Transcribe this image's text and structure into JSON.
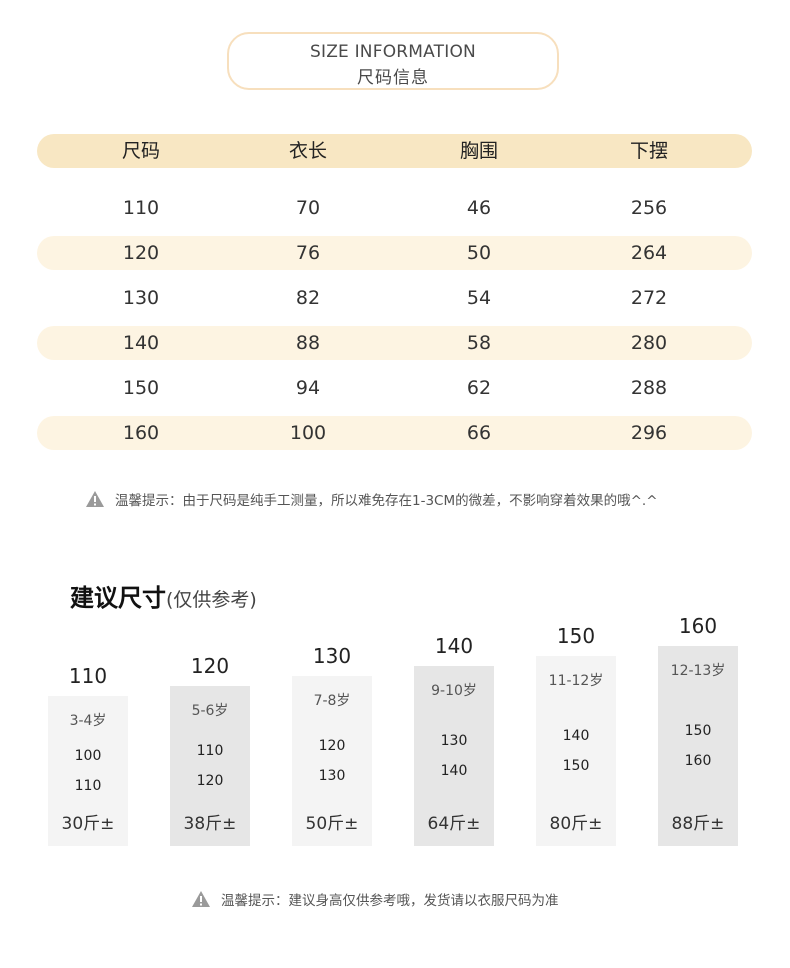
{
  "header": {
    "title_en": "SIZE INFORMATION",
    "title_cn": "尺码信息"
  },
  "size_table": {
    "headers": [
      "尺码",
      "衣长",
      "胸围",
      "下摆"
    ],
    "rows": [
      [
        "110",
        "70",
        "46",
        "256"
      ],
      [
        "120",
        "76",
        "50",
        "264"
      ],
      [
        "130",
        "82",
        "54",
        "272"
      ],
      [
        "140",
        "88",
        "58",
        "280"
      ],
      [
        "150",
        "94",
        "62",
        "288"
      ],
      [
        "160",
        "100",
        "66",
        "296"
      ]
    ]
  },
  "tip1": "温馨提示：由于尺码是纯手工测量，所以难免存在1-3CM的微差，不影响穿着效果的哦^.^",
  "recommend": {
    "title": "建议尺寸",
    "subtitle": "(仅供参考)",
    "columns": [
      {
        "size": "110",
        "age": "3-4岁",
        "height_1": "100",
        "height_2": "110",
        "weight": "30斤±"
      },
      {
        "size": "120",
        "age": "5-6岁",
        "height_1": "110",
        "height_2": "120",
        "weight": "38斤±"
      },
      {
        "size": "130",
        "age": "7-8岁",
        "height_1": "120",
        "height_2": "130",
        "weight": "50斤±"
      },
      {
        "size": "140",
        "age": "9-10岁",
        "height_1": "130",
        "height_2": "140",
        "weight": "64斤±"
      },
      {
        "size": "150",
        "age": "11-12岁",
        "height_1": "140",
        "height_2": "150",
        "weight": "80斤±"
      },
      {
        "size": "160",
        "age": "12-13岁",
        "height_1": "150",
        "height_2": "160",
        "weight": "88斤±"
      }
    ]
  },
  "tip2": "温馨提示：建议身高仅供参考哦，发货请以衣服尺码为准",
  "colors": {
    "header_band": "#f8e7c3",
    "row_band": "#fdf4e2",
    "title_border": "#f7dfbd",
    "box_light": "#f4f4f4",
    "box_dark": "#e6e6e6"
  },
  "icons": {
    "tip": "warning-icon"
  }
}
